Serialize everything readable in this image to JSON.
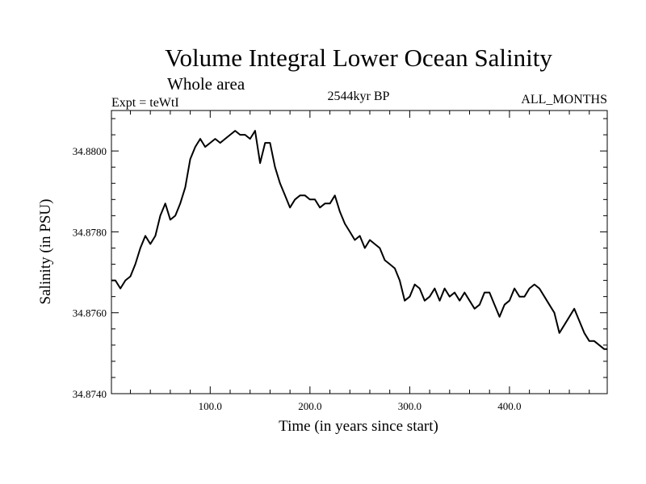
{
  "chart_data": {
    "type": "line",
    "title": "Volume Integral Lower Ocean Salinity",
    "subtitle": "Whole area",
    "left_label": "Expt = teWtI",
    "center_label": "2544kyr BP",
    "right_label": "ALL_MONTHS",
    "xlabel": "Time (in years since start)",
    "ylabel": "Salinity (in PSU)",
    "xlim": [
      1,
      498
    ],
    "ylim": [
      34.874,
      34.881
    ],
    "x_ticks": [
      100,
      200,
      300,
      400
    ],
    "x_tick_labels": [
      "100.0",
      "200.0",
      "300.0",
      "400.0"
    ],
    "y_ticks": [
      34.874,
      34.876,
      34.878,
      34.88
    ],
    "y_tick_labels": [
      "34.8740",
      "34.8760",
      "34.8780",
      "34.8800"
    ],
    "series": [
      {
        "name": "salinity",
        "x": [
          1,
          5,
          10,
          15,
          20,
          25,
          30,
          35,
          40,
          45,
          50,
          55,
          60,
          65,
          70,
          75,
          80,
          85,
          90,
          95,
          100,
          105,
          110,
          115,
          120,
          125,
          130,
          135,
          140,
          145,
          150,
          155,
          160,
          165,
          170,
          175,
          180,
          185,
          190,
          195,
          200,
          205,
          210,
          215,
          220,
          225,
          230,
          235,
          240,
          245,
          250,
          255,
          260,
          265,
          270,
          275,
          280,
          285,
          290,
          295,
          300,
          305,
          310,
          315,
          320,
          325,
          330,
          335,
          340,
          345,
          350,
          355,
          360,
          365,
          370,
          375,
          380,
          385,
          390,
          395,
          400,
          405,
          410,
          415,
          420,
          425,
          430,
          435,
          440,
          445,
          450,
          455,
          460,
          465,
          470,
          475,
          480,
          485,
          490,
          495,
          498
        ],
        "y": [
          34.8768,
          34.8768,
          34.8766,
          34.8768,
          34.8769,
          34.8772,
          34.8776,
          34.8779,
          34.8777,
          34.8779,
          34.8784,
          34.8787,
          34.8783,
          34.8784,
          34.8787,
          34.8791,
          34.8798,
          34.8801,
          34.8803,
          34.8801,
          34.8802,
          34.8803,
          34.8802,
          34.8803,
          34.8804,
          34.8805,
          34.8804,
          34.8804,
          34.8803,
          34.8805,
          34.8797,
          34.8802,
          34.8802,
          34.8796,
          34.8792,
          34.8789,
          34.8786,
          34.8788,
          34.8789,
          34.8789,
          34.8788,
          34.8788,
          34.8786,
          34.8787,
          34.8787,
          34.8789,
          34.8785,
          34.8782,
          34.878,
          34.8778,
          34.8779,
          34.8776,
          34.8778,
          34.8777,
          34.8776,
          34.8773,
          34.8772,
          34.8771,
          34.8768,
          34.8763,
          34.8764,
          34.8767,
          34.8766,
          34.8763,
          34.8764,
          34.8766,
          34.8763,
          34.8766,
          34.8764,
          34.8765,
          34.8763,
          34.8765,
          34.8763,
          34.8761,
          34.8762,
          34.8765,
          34.8765,
          34.8762,
          34.8759,
          34.8762,
          34.8763,
          34.8766,
          34.8764,
          34.8764,
          34.8766,
          34.8767,
          34.8766,
          34.8764,
          34.8762,
          34.876,
          34.8755,
          34.8757,
          34.8759,
          34.8761,
          34.8758,
          34.8755,
          34.8753,
          34.8753,
          34.8752,
          34.8751,
          34.8751
        ]
      }
    ]
  }
}
